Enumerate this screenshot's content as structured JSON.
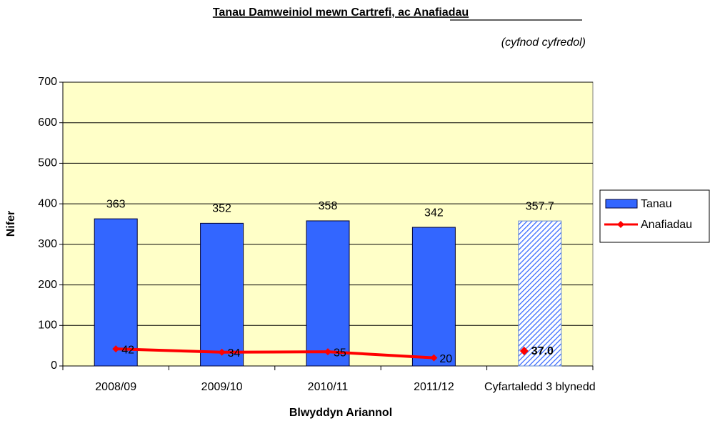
{
  "chart_data": {
    "type": "bar-line",
    "title": "Tanau Damweiniol mewn Cartrefi, ac Anafiadau",
    "subtitle": "(cyfnod cyfredol)",
    "x_label": "Blwyddyn Ariannol",
    "y_label": "Nifer",
    "categories": [
      "2008/09",
      "2009/10",
      "2010/11",
      "2011/12"
    ],
    "series": [
      {
        "name": "Tanau",
        "type": "bar",
        "color": "#3366ff",
        "values": [
          363,
          352,
          358,
          342
        ]
      },
      {
        "name": "Anafiadau",
        "type": "line",
        "color": "#ff0000",
        "values": [
          42,
          34,
          35,
          20
        ]
      }
    ],
    "average": {
      "category": "Cyfartaledd 3 blynedd",
      "values": [
        357.7,
        37
      ],
      "value_labels": [
        "357.7",
        "37.0"
      ]
    },
    "ylim": [
      0,
      700
    ],
    "yticks": [
      0,
      100,
      200,
      300,
      400,
      500,
      600,
      700
    ],
    "grid": true,
    "plot_background": "#ffffc8",
    "legend": "right"
  }
}
